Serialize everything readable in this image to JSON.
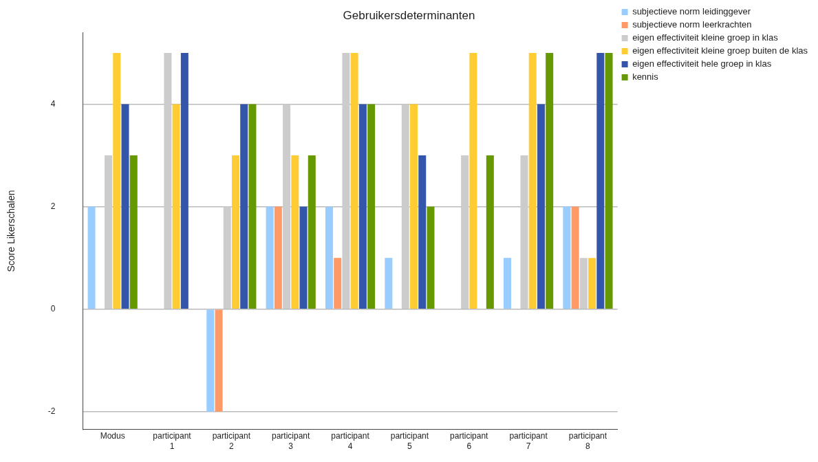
{
  "chart_data": {
    "type": "bar",
    "title": "Gebruikersdeterminanten",
    "ylabel": "Score Likerschalen",
    "categories": [
      "Modus",
      "participant 1",
      "participant 2",
      "participant 3",
      "participant 4",
      "participant 5",
      "participant 6",
      "participant 7",
      "participant 8"
    ],
    "series": [
      {
        "name": "subjectieve norm leidinggever",
        "color": "#99ccff",
        "values": [
          2,
          null,
          -2,
          2,
          2,
          1,
          null,
          1,
          2
        ]
      },
      {
        "name": "subjectieve norm leerkrachten",
        "color": "#ff9966",
        "values": [
          null,
          null,
          -2,
          2,
          1,
          null,
          null,
          null,
          2
        ]
      },
      {
        "name": "eigen effectiviteit kleine groep in klas",
        "color": "#cccccc",
        "values": [
          3,
          5,
          2,
          4,
          5,
          4,
          3,
          3,
          1
        ]
      },
      {
        "name": "eigen effectiviteit kleine groep buiten de klas",
        "color": "#ffcc33",
        "values": [
          5,
          4,
          3,
          3,
          5,
          4,
          5,
          5,
          1
        ]
      },
      {
        "name": "eigen effectiviteit hele groep in klas",
        "color": "#3355aa",
        "values": [
          4,
          5,
          4,
          2,
          4,
          3,
          null,
          4,
          5
        ]
      },
      {
        "name": "kennis",
        "color": "#669900",
        "values": [
          3,
          null,
          4,
          3,
          4,
          2,
          3,
          5,
          5
        ]
      }
    ],
    "ylim": [
      -2.35,
      5.4
    ],
    "yticks": [
      -2,
      0,
      2,
      4
    ],
    "grid": "y",
    "legend": "top right"
  }
}
